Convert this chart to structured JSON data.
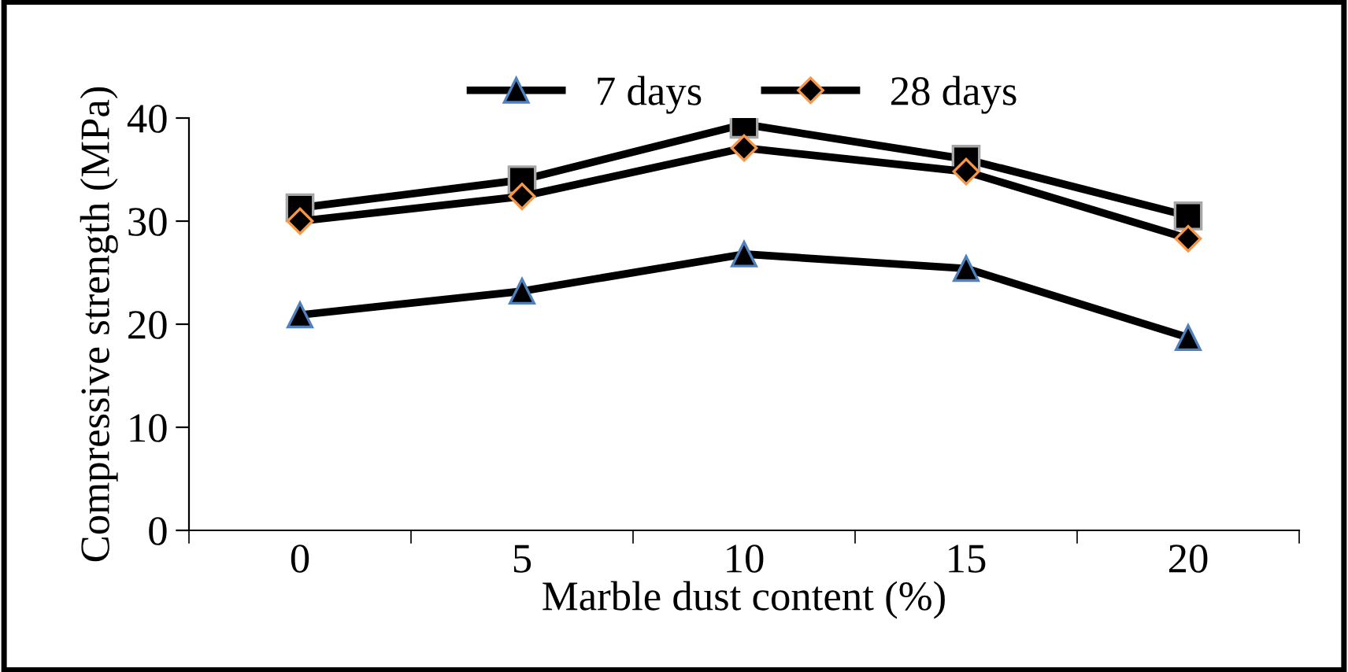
{
  "chart_data": {
    "type": "line",
    "xlabel": "Marble dust content (%)",
    "ylabel": "Compressive strength (MPa)",
    "categories": [
      "0",
      "5",
      "10",
      "15",
      "20"
    ],
    "series": [
      {
        "name": "7 days",
        "color": "#000000",
        "marker": "triangle",
        "values": [
          20.9,
          23.2,
          26.8,
          25.4,
          18.7
        ]
      },
      {
        "name": "28 days",
        "color": "#000000",
        "marker": "diamond",
        "values": [
          30.0,
          32.4,
          37.1,
          34.8,
          28.3
        ]
      },
      {
        "color": "#000000",
        "marker": "square",
        "values": [
          31.3,
          34.0,
          39.4,
          36.0,
          30.5
        ]
      }
    ],
    "ylim": [
      0,
      40
    ],
    "yticks": [
      0,
      10,
      20,
      30,
      40
    ],
    "grid": false,
    "legend": "top",
    "line_style": "solid"
  }
}
